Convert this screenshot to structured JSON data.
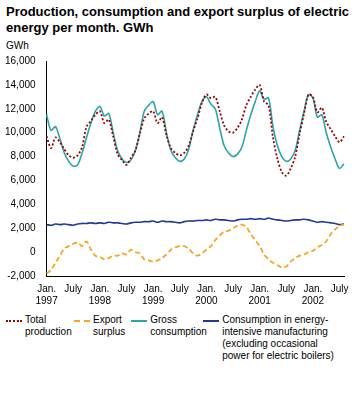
{
  "chart_data": {
    "type": "line",
    "title": "Production, consumption and export surplus of electric energy per month. GWh",
    "y_label": "GWh",
    "categories": [
      "Jan. 1997",
      null,
      null,
      null,
      null,
      null,
      "July",
      null,
      null,
      null,
      null,
      null,
      "Jan. 1998",
      null,
      null,
      null,
      null,
      null,
      "July",
      null,
      null,
      null,
      null,
      null,
      "Jan. 1999",
      null,
      null,
      null,
      null,
      null,
      "July",
      null,
      null,
      null,
      null,
      null,
      "Jan. 2000",
      null,
      null,
      null,
      null,
      null,
      "July",
      null,
      null,
      null,
      null,
      null,
      "Jan. 2001",
      null,
      null,
      null,
      null,
      null,
      "July",
      null,
      null,
      null,
      null,
      null,
      "Jan. 2002",
      null,
      null,
      null,
      null,
      null,
      "July",
      null
    ],
    "series": [
      {
        "name": "Total production",
        "color": "#990000",
        "line_style": "dotted",
        "values": [
          9700,
          8700,
          9600,
          9200,
          8600,
          8100,
          7900,
          8100,
          8800,
          10500,
          11000,
          11500,
          11800,
          10800,
          11100,
          9700,
          8200,
          7700,
          7300,
          7900,
          8500,
          9900,
          11200,
          11600,
          11800,
          10800,
          11300,
          9800,
          8700,
          8300,
          8100,
          8300,
          8900,
          10100,
          11200,
          12500,
          13200,
          12900,
          13000,
          11800,
          10600,
          10100,
          10000,
          10400,
          11100,
          12300,
          13000,
          13600,
          14000,
          12600,
          12300,
          9600,
          7800,
          6700,
          6400,
          7000,
          8000,
          9900,
          11600,
          13200,
          13000,
          11700,
          12100,
          10900,
          10300,
          9700,
          9200,
          9700
        ]
      },
      {
        "name": "Export surplus",
        "color": "#f5a623",
        "line_style": "dashed",
        "values": [
          -1800,
          -1500,
          -900,
          -300,
          300,
          500,
          700,
          800,
          500,
          900,
          200,
          -300,
          -400,
          -600,
          -500,
          -300,
          -300,
          -100,
          -200,
          200,
          0,
          -100,
          -600,
          -700,
          -800,
          -700,
          -500,
          -200,
          200,
          400,
          500,
          500,
          300,
          -100,
          -300,
          -100,
          200,
          500,
          1000,
          1400,
          1700,
          1800,
          2000,
          2200,
          2300,
          2100,
          1500,
          1000,
          500,
          -200,
          -600,
          -900,
          -1100,
          -1300,
          -1200,
          -800,
          -500,
          -300,
          -200,
          0,
          100,
          400,
          600,
          900,
          1500,
          1900,
          2200,
          2300
        ]
      },
      {
        "name": "Gross consumption",
        "color": "#2aa6a6",
        "line_style": "solid",
        "values": [
          11500,
          10200,
          10500,
          9500,
          8300,
          7600,
          7200,
          7300,
          8300,
          9600,
          10800,
          11800,
          12200,
          11400,
          11600,
          10000,
          8500,
          7800,
          7500,
          7700,
          8500,
          10000,
          11800,
          12300,
          12600,
          11500,
          11800,
          10000,
          8500,
          7900,
          7600,
          7800,
          8600,
          10200,
          11500,
          12600,
          13000,
          12400,
          12000,
          10400,
          8900,
          8300,
          8000,
          8200,
          8800,
          10200,
          11500,
          12600,
          13500,
          12800,
          12900,
          10500,
          8900,
          8000,
          7600,
          7800,
          8500,
          10200,
          11800,
          13200,
          12900,
          11300,
          11500,
          10000,
          8800,
          7800,
          7000,
          7400
        ]
      },
      {
        "name": "Consumption in energy-intensive manufacturing (excluding occasional power for electric boilers)",
        "color": "#1f3a93",
        "line_style": "solid",
        "values": [
          2300,
          2250,
          2350,
          2300,
          2350,
          2300,
          2250,
          2350,
          2400,
          2400,
          2450,
          2400,
          2450,
          2400,
          2500,
          2450,
          2450,
          2400,
          2350,
          2450,
          2500,
          2500,
          2550,
          2550,
          2600,
          2500,
          2600,
          2550,
          2550,
          2500,
          2450,
          2550,
          2600,
          2600,
          2650,
          2650,
          2700,
          2650,
          2750,
          2700,
          2700,
          2650,
          2600,
          2700,
          2750,
          2750,
          2800,
          2750,
          2800,
          2750,
          2850,
          2750,
          2700,
          2650,
          2600,
          2650,
          2700,
          2700,
          2750,
          2700,
          2600,
          2500,
          2550,
          2500,
          2450,
          2400,
          2300,
          2350
        ]
      }
    ],
    "ylim": [
      -2000,
      16000
    ],
    "yticks": [
      -2000,
      0,
      2000,
      4000,
      6000,
      8000,
      10000,
      12000,
      14000,
      16000
    ],
    "grid": false,
    "legend": "bottom"
  }
}
